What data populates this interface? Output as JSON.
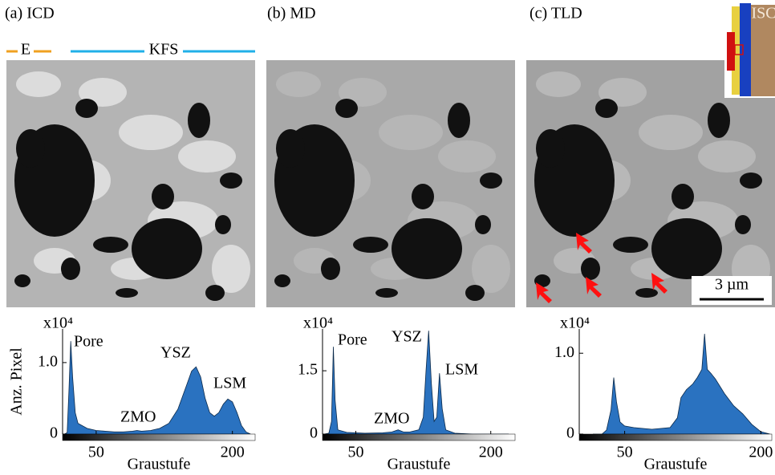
{
  "panel_titles": [
    "(a) ICD",
    "(b) MD",
    "(c) TLD"
  ],
  "layer_labels": {
    "e": "E",
    "kfs": "KFS",
    "isc": "ISC"
  },
  "scale_bar": "3 µm",
  "chart_data": [
    {
      "type": "area",
      "color": "#2a72c0",
      "multiplier": "x10⁴",
      "y_label": "Anz. Pixel",
      "x_label": "Graustufe",
      "annotations": [
        "Pore",
        "ZMO",
        "YSZ",
        "LSM"
      ],
      "x": [
        15,
        18,
        20,
        22,
        24,
        27,
        30,
        40,
        50,
        60,
        70,
        80,
        90,
        95,
        100,
        110,
        120,
        130,
        140,
        150,
        155,
        160,
        165,
        170,
        175,
        180,
        185,
        190,
        195,
        200,
        205,
        210,
        215,
        220
      ],
      "values": [
        0,
        0.02,
        0.6,
        1.3,
        0.8,
        0.3,
        0.15,
        0.08,
        0.05,
        0.04,
        0.03,
        0.03,
        0.04,
        0.05,
        0.04,
        0.05,
        0.08,
        0.15,
        0.35,
        0.7,
        0.88,
        0.94,
        0.8,
        0.5,
        0.3,
        0.25,
        0.3,
        0.42,
        0.49,
        0.45,
        0.3,
        0.12,
        0.03,
        0
      ],
      "xlim": [
        13,
        225
      ],
      "xticks": [
        50,
        200
      ],
      "ylim": [
        0,
        1.47
      ],
      "yticks": [
        0,
        {
          "value": 1,
          "label": "1.0"
        }
      ]
    },
    {
      "type": "area",
      "color": "#2a72c0",
      "multiplier": "x10⁴",
      "x_label": "Graustufe",
      "annotations": [
        "Pore",
        "ZMO",
        "YSZ",
        "LSM"
      ],
      "x": [
        15,
        20,
        23,
        25,
        27,
        30,
        40,
        60,
        80,
        90,
        97,
        103,
        110,
        120,
        125,
        128,
        131,
        134,
        137,
        140,
        143,
        146,
        150,
        160,
        180,
        220
      ],
      "values": [
        0,
        0.02,
        0.3,
        2.07,
        0.8,
        0.1,
        0.04,
        0.02,
        0.03,
        0.05,
        0.1,
        0.05,
        0.05,
        0.1,
        0.4,
        1.5,
        2.45,
        1.2,
        0.3,
        0.4,
        1.44,
        0.6,
        0.1,
        0.02,
        0,
        0
      ],
      "xlim": [
        13,
        227
      ],
      "xticks": [
        50,
        200
      ],
      "ylim": [
        0,
        2.49
      ],
      "yticks": [
        0,
        1.5
      ]
    },
    {
      "type": "area",
      "color": "#2a72c0",
      "multiplier": "x10⁴",
      "x_label": "Graustufe",
      "x": [
        15,
        25,
        30,
        35,
        38,
        41,
        45,
        50,
        60,
        80,
        100,
        108,
        112,
        118,
        125,
        130,
        135,
        138,
        141,
        145,
        150,
        160,
        170,
        180,
        190,
        200,
        210
      ],
      "values": [
        0,
        0,
        0.05,
        0.3,
        0.7,
        0.4,
        0.15,
        0.1,
        0.08,
        0.06,
        0.08,
        0.2,
        0.45,
        0.55,
        0.62,
        0.7,
        0.8,
        1.24,
        0.8,
        0.75,
        0.68,
        0.5,
        0.35,
        0.25,
        0.12,
        0.03,
        0
      ],
      "xlim": [
        0,
        212
      ],
      "xticks": [
        50,
        200
      ],
      "ylim": [
        0,
        1.3
      ],
      "yticks": [
        0,
        {
          "value": 1,
          "label": "1.0"
        }
      ]
    }
  ]
}
